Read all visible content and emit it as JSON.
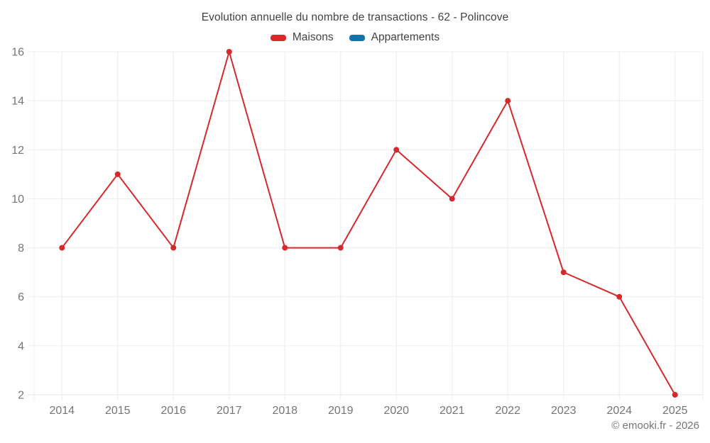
{
  "title": "Evolution annuelle du nombre de transactions - 62 - Polincove",
  "footer": "© emooki.fr - 2026",
  "legend": {
    "items": [
      {
        "label": "Maisons",
        "color": "#d7282c"
      },
      {
        "label": "Appartements",
        "color": "#1473a6"
      }
    ]
  },
  "colors": {
    "grid": "#ececec",
    "axis_line": "#e3e3e3",
    "tick_text": "#757575",
    "title_text": "#424242",
    "background": "#ffffff"
  },
  "chart_data": {
    "type": "line",
    "title": "Evolution annuelle du nombre de transactions - 62 - Polincove",
    "x": [
      2014,
      2015,
      2016,
      2017,
      2018,
      2019,
      2020,
      2021,
      2022,
      2023,
      2024,
      2025
    ],
    "series": [
      {
        "name": "Maisons",
        "color": "#d7282c",
        "values": [
          8,
          11,
          8,
          16,
          8,
          8,
          12,
          10,
          14,
          7,
          6,
          2
        ]
      },
      {
        "name": "Appartements",
        "color": "#1473a6",
        "values": []
      }
    ],
    "xlabel": "",
    "ylabel": "",
    "ylim": [
      2,
      16
    ],
    "yticks": [
      2,
      4,
      6,
      8,
      10,
      12,
      14,
      16
    ],
    "grid": true,
    "legend_position": "top",
    "marker_radius": 4,
    "line_width": 2
  }
}
